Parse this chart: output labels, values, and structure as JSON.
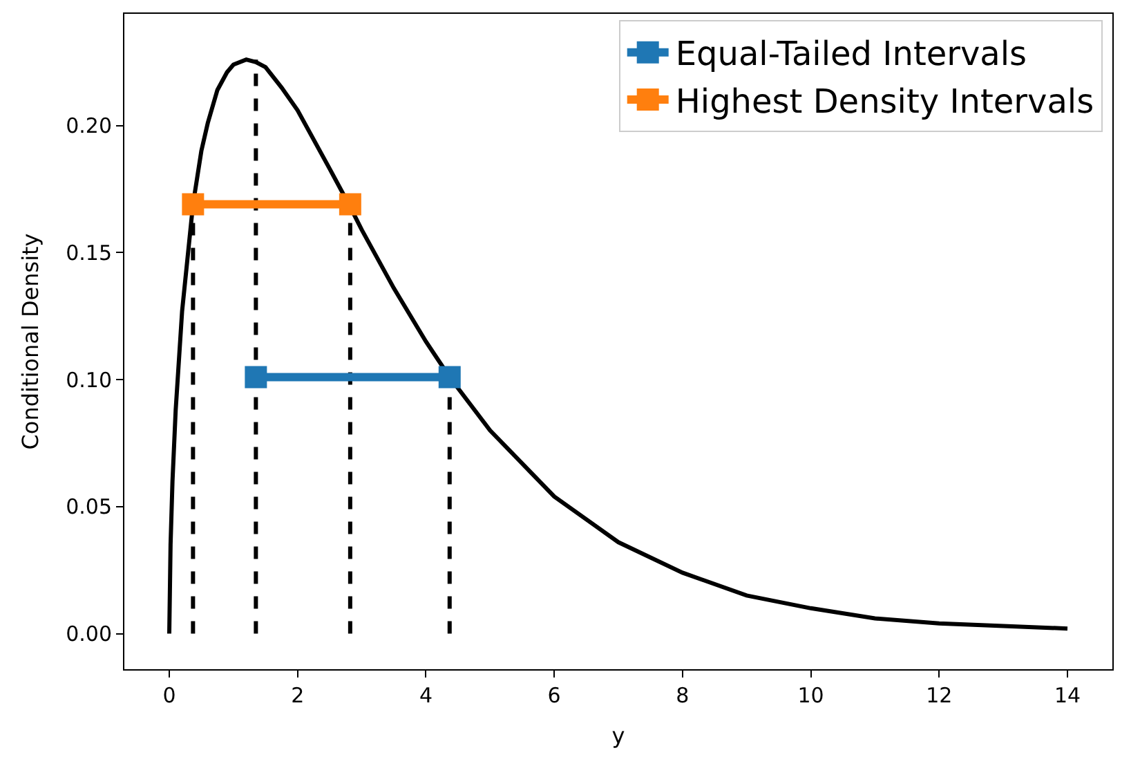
{
  "chart_data": {
    "type": "line",
    "xlabel": "y",
    "ylabel": "Conditional Density",
    "xlim": [
      -0.7,
      14.7
    ],
    "ylim": [
      -0.014,
      0.244
    ],
    "xticks": [
      0,
      2,
      4,
      6,
      8,
      10,
      12,
      14
    ],
    "yticks": [
      {
        "value": 0,
        "label": "0.00"
      },
      {
        "value": 0.05,
        "label": "0.05"
      },
      {
        "value": 0.1,
        "label": "0.10"
      },
      {
        "value": 0.15,
        "label": "0.15"
      },
      {
        "value": 0.2,
        "label": "0.20"
      }
    ],
    "legend": "top right",
    "marker": "none",
    "line_style": "solid",
    "series": [
      {
        "color": "#000000",
        "x": [
          0,
          0.02,
          0.05,
          0.1,
          0.2,
          0.37,
          0.5,
          0.6,
          0.75,
          0.9,
          1.0,
          1.2,
          1.35,
          1.5,
          1.75,
          2.0,
          2.5,
          2.82,
          3.0,
          3.5,
          4.0,
          4.37,
          5,
          6,
          7,
          8,
          9,
          10,
          11,
          12,
          13,
          14
        ],
        "values": [
          0,
          0.035,
          0.06,
          0.088,
          0.127,
          0.169,
          0.19,
          0.201,
          0.214,
          0.221,
          0.224,
          0.226,
          0.225,
          0.223,
          0.215,
          0.206,
          0.183,
          0.168,
          0.159,
          0.136,
          0.115,
          0.101,
          0.08,
          0.054,
          0.036,
          0.024,
          0.015,
          0.01,
          0.006,
          0.004,
          0.003,
          0.002
        ]
      },
      {
        "color": "#000000",
        "line_style": "dashed",
        "x": [
          0.37,
          0.37
        ],
        "values": [
          0,
          0.169
        ]
      },
      {
        "color": "#000000",
        "line_style": "dashed",
        "x": [
          1.35,
          1.35
        ],
        "values": [
          0,
          0.226
        ]
      },
      {
        "color": "#000000",
        "line_style": "dashed",
        "x": [
          2.82,
          2.82
        ],
        "values": [
          0,
          0.169
        ]
      },
      {
        "color": "#000000",
        "line_style": "dashed",
        "x": [
          4.37,
          4.37
        ],
        "values": [
          0,
          0.101
        ]
      },
      {
        "name": "Equal-Tailed Intervals",
        "color": "#1f77b4",
        "marker": "square",
        "x": [
          1.35,
          4.37
        ],
        "values": [
          0.101,
          0.101
        ]
      },
      {
        "name": "Highest Density Intervals",
        "color": "#ff7f0e",
        "marker": "square",
        "x": [
          0.37,
          2.82
        ],
        "values": [
          0.169,
          0.169
        ]
      }
    ]
  }
}
